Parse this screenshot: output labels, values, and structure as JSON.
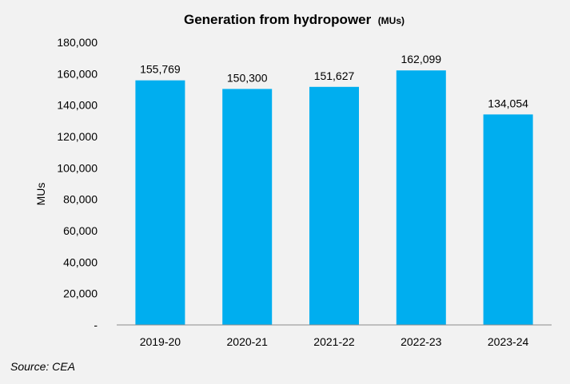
{
  "chart_data": {
    "type": "bar",
    "title": "Generation from hydropower",
    "title_unit": "(MUs)",
    "categories": [
      "2019-20",
      "2020-21",
      "2021-22",
      "2022-23",
      "2023-24"
    ],
    "values": [
      155769,
      150300,
      151627,
      162099,
      134054
    ],
    "data_labels": [
      "155,769",
      "150,300",
      "151,627",
      "162,099",
      "134,054"
    ],
    "ylabel": "MUs",
    "xlabel": "",
    "ylim": [
      0,
      180000
    ],
    "yticks": [
      0,
      20000,
      40000,
      60000,
      80000,
      100000,
      120000,
      140000,
      160000,
      180000
    ],
    "ytick_labels": [
      "-",
      "20,000",
      "40,000",
      "60,000",
      "80,000",
      "100,000",
      "120,000",
      "140,000",
      "160,000",
      "180,000"
    ],
    "grid": false,
    "bar_color": "#00aeef"
  },
  "source": "Source: CEA"
}
